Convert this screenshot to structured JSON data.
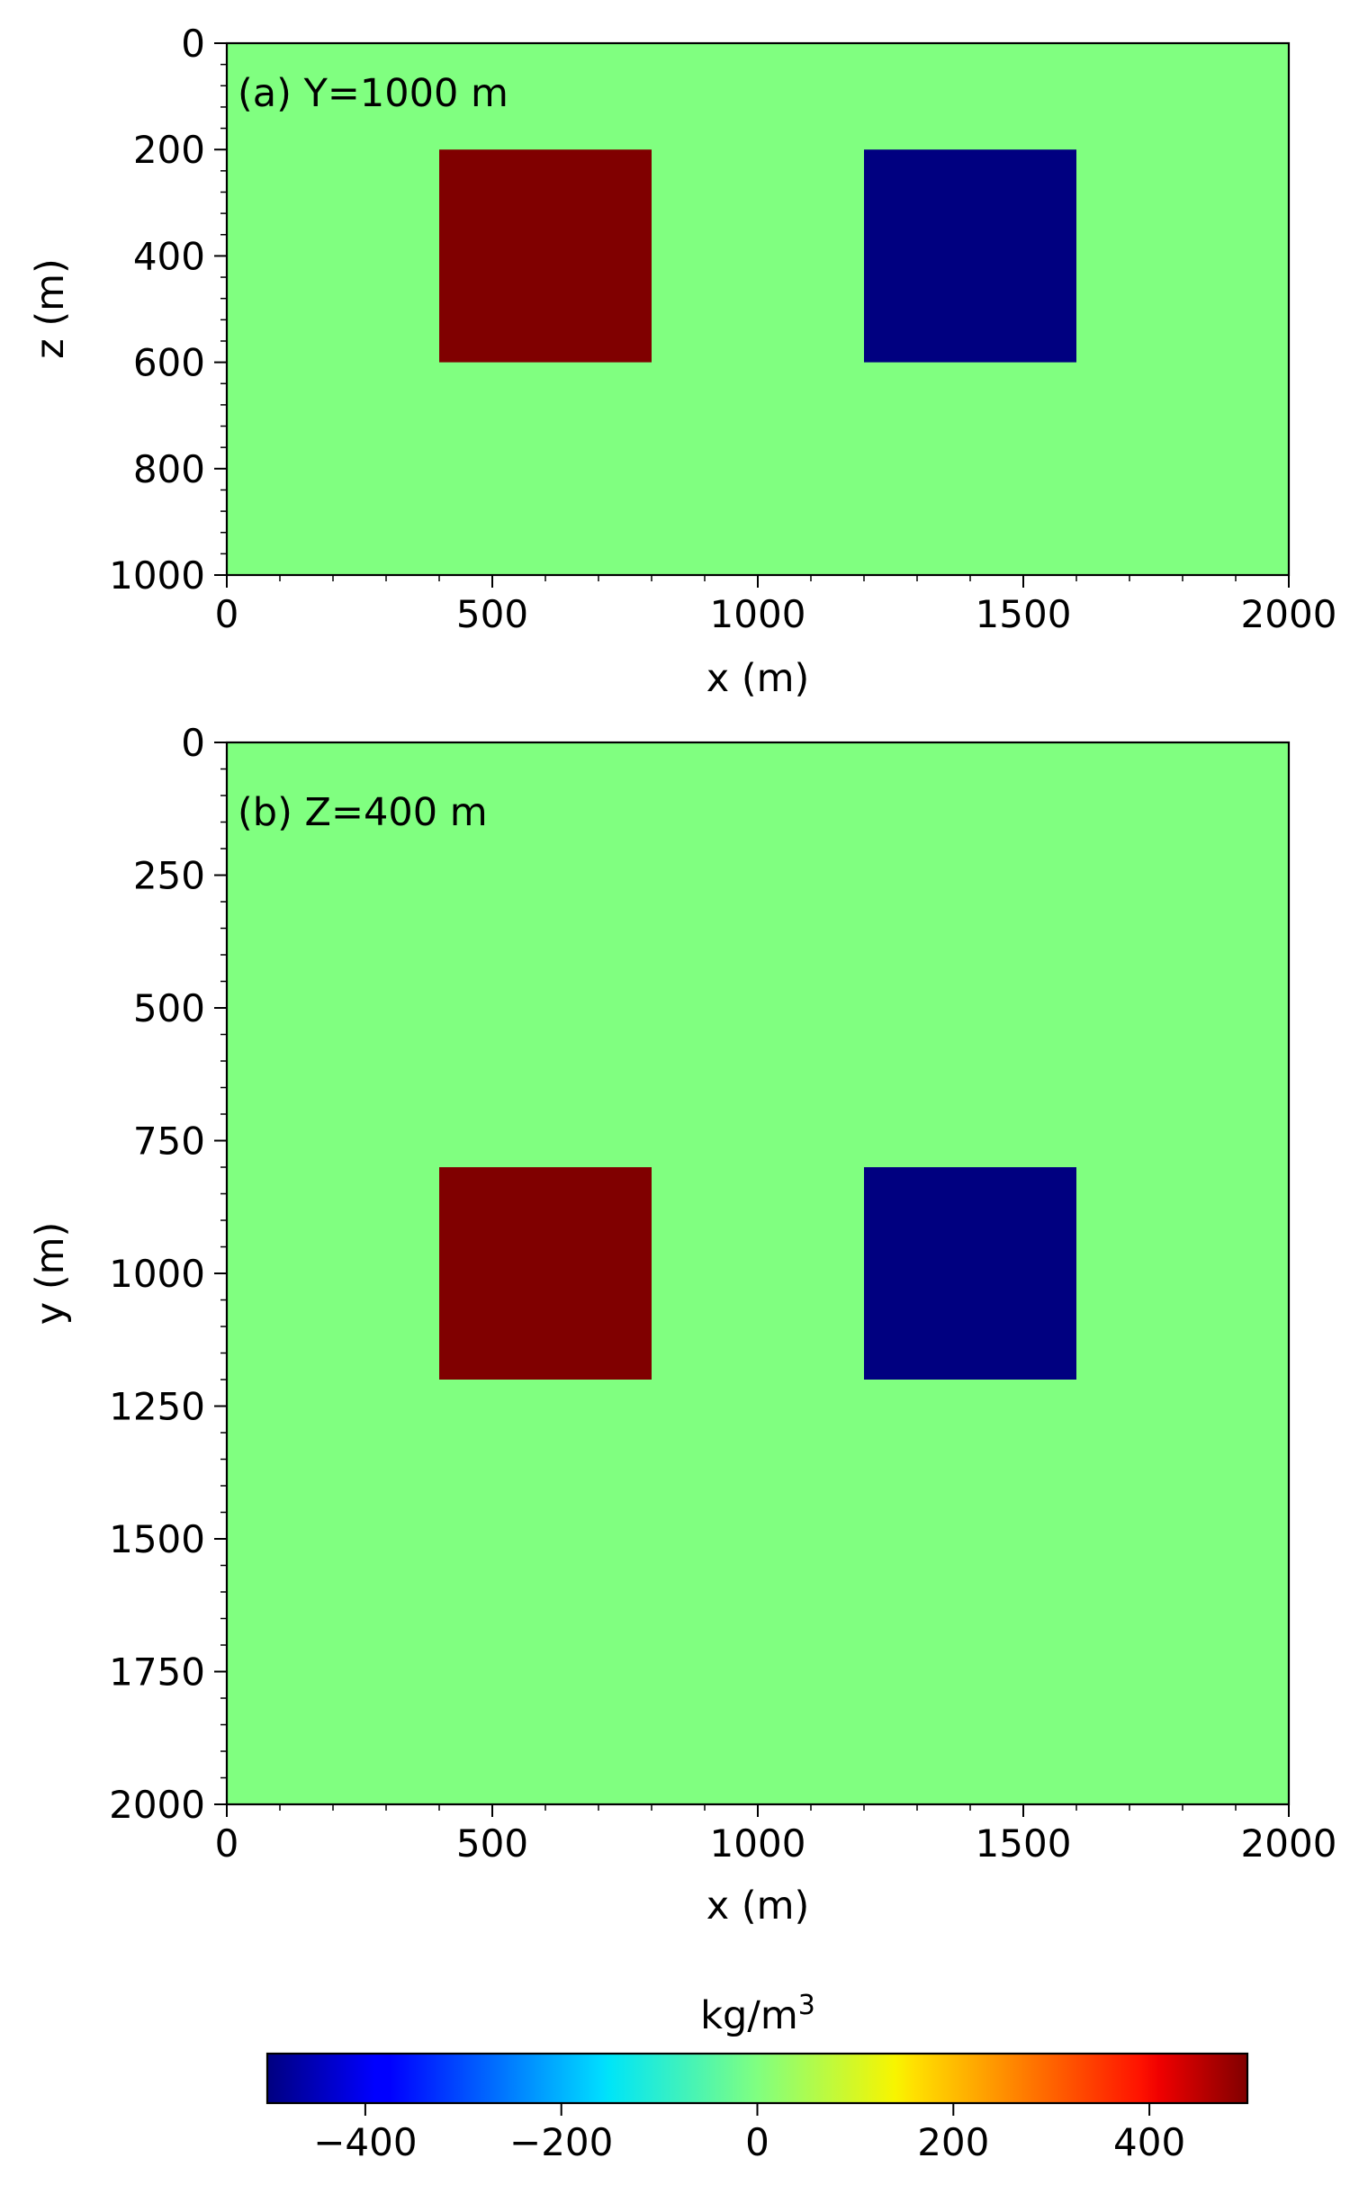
{
  "colors": {
    "background_value_color": "#80ff80",
    "positive_block_color": "#800000",
    "negative_block_color": "#000080"
  },
  "colormap": "jet",
  "chart_data": [
    {
      "type": "heatmap",
      "panel_label": "(a) Y=1000 m",
      "xlabel": "x (m)",
      "ylabel": "z (m)",
      "xlim": [
        0,
        2000
      ],
      "ylim": [
        0,
        1000
      ],
      "y_inverted": true,
      "xticks": [
        0,
        500,
        1000,
        1500,
        2000
      ],
      "yticks": [
        0,
        200,
        400,
        600,
        800,
        1000
      ],
      "background_value": 0,
      "blocks": [
        {
          "x_range": [
            400,
            800
          ],
          "y_range": [
            200,
            600
          ],
          "value": 500
        },
        {
          "x_range": [
            1200,
            1600
          ],
          "y_range": [
            200,
            600
          ],
          "value": -500
        }
      ]
    },
    {
      "type": "heatmap",
      "panel_label": "(b) Z=400 m",
      "xlabel": "x (m)",
      "ylabel": "y (m)",
      "xlim": [
        0,
        2000
      ],
      "ylim": [
        0,
        2000
      ],
      "y_inverted": true,
      "xticks": [
        0,
        500,
        1000,
        1500,
        2000
      ],
      "yticks": [
        0,
        250,
        500,
        750,
        1000,
        1250,
        1500,
        1750,
        2000
      ],
      "background_value": 0,
      "blocks": [
        {
          "x_range": [
            400,
            800
          ],
          "y_range": [
            800,
            1200
          ],
          "value": 500
        },
        {
          "x_range": [
            1200,
            1600
          ],
          "y_range": [
            800,
            1200
          ],
          "value": -500
        }
      ]
    }
  ],
  "colorbar": {
    "title_base": "kg/m",
    "title_superscript": "3",
    "range": [
      -500,
      500
    ],
    "ticks": [
      -400,
      -200,
      0,
      200,
      400
    ],
    "tick_labels": [
      "−400",
      "−200",
      "0",
      "200",
      "400"
    ]
  }
}
